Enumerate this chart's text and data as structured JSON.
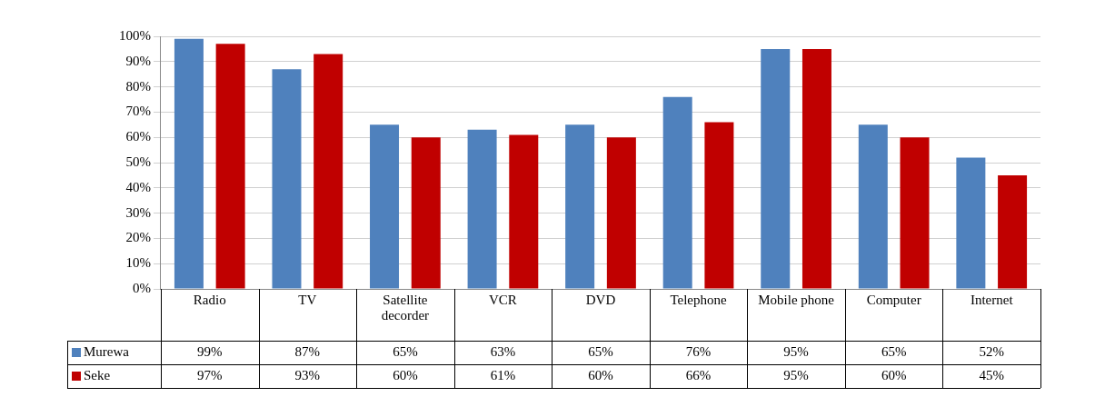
{
  "chart_data": {
    "type": "bar",
    "categories": [
      "Radio",
      "TV",
      "Satellite decorder",
      "VCR",
      "DVD",
      "Telephone",
      "Mobile phone",
      "Computer",
      "Internet"
    ],
    "series": [
      {
        "name": "Murewa",
        "color": "#4f81bd",
        "values": [
          99,
          87,
          65,
          63,
          65,
          76,
          95,
          65,
          52
        ]
      },
      {
        "name": "Seke",
        "color": "#c00000",
        "values": [
          97,
          93,
          60,
          61,
          60,
          66,
          95,
          60,
          45
        ]
      }
    ],
    "ylim": [
      0,
      100
    ],
    "yticks": [
      {
        "value": 0,
        "label": "0%"
      },
      {
        "value": 10,
        "label": "10%"
      },
      {
        "value": 20,
        "label": "20%"
      },
      {
        "value": 30,
        "label": "30%"
      },
      {
        "value": 40,
        "label": "40%"
      },
      {
        "value": 50,
        "label": "50%"
      },
      {
        "value": 60,
        "label": "60%"
      },
      {
        "value": 70,
        "label": "70%"
      },
      {
        "value": 80,
        "label": "80%"
      },
      {
        "value": 90,
        "label": "90%"
      },
      {
        "value": 100,
        "label": "100%"
      }
    ],
    "grid": "y",
    "legend": "bottom",
    "value_labels": [
      [
        "99%",
        "87%",
        "65%",
        "63%",
        "65%",
        "76%",
        "95%",
        "65%",
        "52%"
      ],
      [
        "97%",
        "93%",
        "60%",
        "61%",
        "60%",
        "66%",
        "95%",
        "60%",
        "45%"
      ]
    ]
  }
}
